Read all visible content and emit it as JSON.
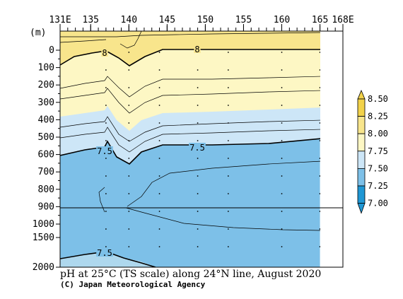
{
  "chart_data": {
    "type": "heatmap",
    "title": "pH at 25°C (TS scale) along 24°N line, August 2020",
    "credit": "(C) Japan Meteorological Agency",
    "y_unit_label": "(m)",
    "x_ticks": [
      {
        "value": 131,
        "label": "131E"
      },
      {
        "value": 135,
        "label": "135"
      },
      {
        "value": 140,
        "label": "140"
      },
      {
        "value": 145,
        "label": "145"
      },
      {
        "value": 150,
        "label": "150"
      },
      {
        "value": 155,
        "label": "155"
      },
      {
        "value": 160,
        "label": "160"
      },
      {
        "value": 165,
        "label": "165"
      },
      {
        "value": 168,
        "label": "168E"
      }
    ],
    "x_range": [
      131,
      168
    ],
    "data_x_max": 165,
    "y_upper_ticks": [
      {
        "value": 0,
        "label": "0"
      },
      {
        "value": 100,
        "label": "100"
      },
      {
        "value": 200,
        "label": "200"
      },
      {
        "value": 300,
        "label": "300"
      },
      {
        "value": 400,
        "label": "400"
      },
      {
        "value": 500,
        "label": "500"
      },
      {
        "value": 600,
        "label": "600"
      },
      {
        "value": 700,
        "label": "700"
      },
      {
        "value": 800,
        "label": "800"
      },
      {
        "value": 900,
        "label": "900"
      },
      {
        "value": 1000,
        "label": "1000"
      }
    ],
    "y_lower_ticks": [
      {
        "value": 1500,
        "label": "1500"
      },
      {
        "value": 2000,
        "label": "2000"
      }
    ],
    "y_break": 1000,
    "colorbar": {
      "levels": [
        {
          "label": "8.50",
          "value": 8.5
        },
        {
          "label": "8.25",
          "value": 8.25
        },
        {
          "label": "8.00",
          "value": 8.0
        },
        {
          "label": "7.75",
          "value": 7.75
        },
        {
          "label": "7.50",
          "value": 7.5
        },
        {
          "label": "7.25",
          "value": 7.25
        },
        {
          "label": "7.00",
          "value": 7.0
        }
      ],
      "colors": [
        "#f2d24a",
        "#f8e58c",
        "#fdf7c4",
        "#cde6f7",
        "#7dc0e8",
        "#1f97d4"
      ]
    },
    "contour_labels": [
      "8",
      "8",
      "7.5",
      "7.5",
      "7.5"
    ],
    "stations_lon": [
      137,
      140,
      144,
      149,
      153,
      160,
      165
    ],
    "fill_colors": {
      "bright_yellow": "#f8e58c",
      "pale_yellow": "#fdf7c4",
      "light_blue": "#cde6f7",
      "mid_blue": "#7dc0e8",
      "sea_floor": "#aed8ee"
    }
  }
}
